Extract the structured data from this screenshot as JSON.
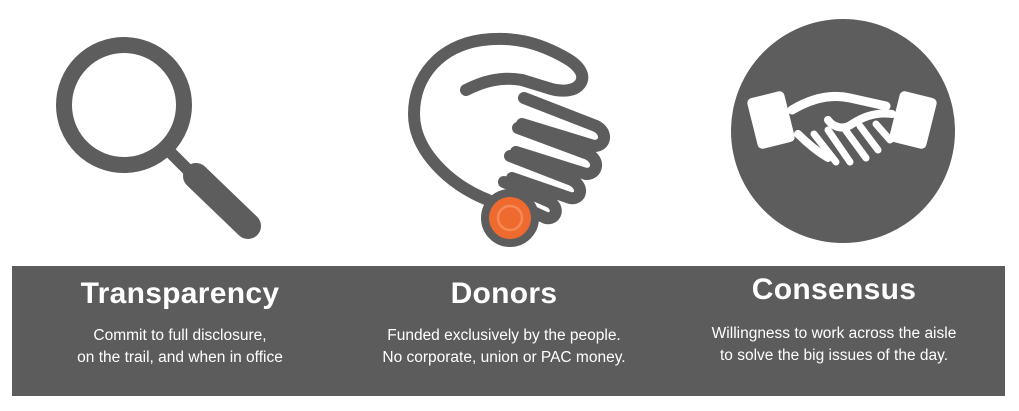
{
  "colors": {
    "banner": "#5c5c5c",
    "icon_gray": "#5d5d5d",
    "coin_orange": "#ef6a2f",
    "text": "#ffffff"
  },
  "icons": [
    "magnifier-icon",
    "coin-hand-icon",
    "handshake-icon"
  ],
  "columns": [
    {
      "title": "Transparency",
      "lines": [
        "Commit to full disclosure,",
        "on the trail, and when in office"
      ]
    },
    {
      "title": "Donors",
      "lines": [
        "Funded exclusively by the people.",
        "No corporate, union or PAC money."
      ]
    },
    {
      "title": "Consensus",
      "lines": [
        "Willingness to work across the aisle",
        "to solve the big issues of the day."
      ]
    }
  ]
}
